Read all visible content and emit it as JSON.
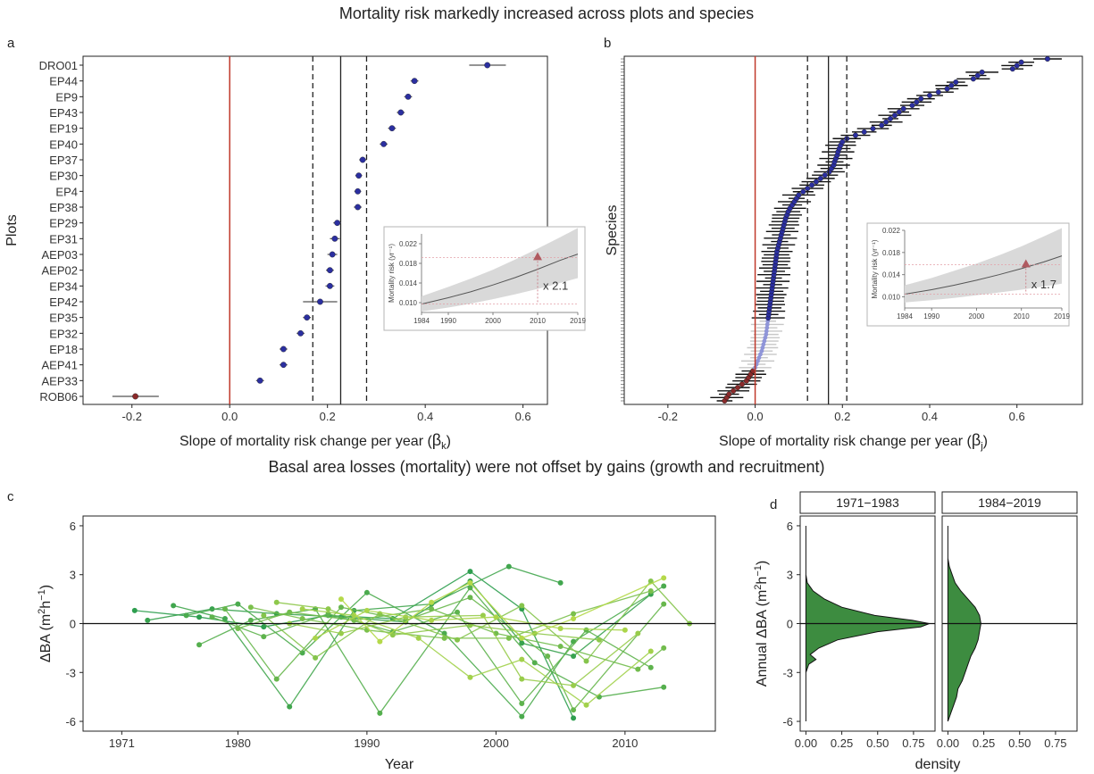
{
  "titles": {
    "top": "Mortality risk markedly increased across plots and species",
    "bottom": "Basal area losses (mortality) were not offset by gains (growth and recruitment)"
  },
  "panel_labels": [
    "a",
    "b",
    "c",
    "d"
  ],
  "colors": {
    "point_blue": "#2b2fa0",
    "point_red": "#8b2a2a",
    "faint_blue": "#8f95d8",
    "zero_line": "#c0392b",
    "green_dark": "#2e9e4f",
    "green_light": "#b5d94a",
    "density_fill": "#3d8c40",
    "inset_band": "#d9d9d9"
  },
  "chart_data": [
    {
      "id": "a",
      "type": "scatter",
      "subtype": "forest-plot",
      "xlabel_main": "Slope of mortality risk change per year (",
      "xlabel_sym": "β",
      "xlabel_sub": "k",
      "xlabel_end": ")",
      "ylabel": "Plots",
      "xlim": [
        -0.3,
        0.65
      ],
      "xticks": [
        -0.2,
        0.0,
        0.2,
        0.4,
        0.6
      ],
      "xtick_labels": [
        "-0.2",
        "0.0",
        "0.2",
        "0.4",
        "0.6"
      ],
      "reference_lines": {
        "zero": 0.0,
        "mean": 0.227,
        "ci": [
          0.17,
          0.28
        ]
      },
      "plots": [
        "DRO01",
        "EP44",
        "EP9",
        "EP43",
        "EP19",
        "EP40",
        "EP37",
        "EP30",
        "EP4",
        "EP38",
        "EP29",
        "EP31",
        "AEP03",
        "AEP02",
        "EP34",
        "EP42",
        "EP35",
        "EP32",
        "EP18",
        "AEP41",
        "AEP33",
        "ROB06"
      ],
      "estimates": [
        0.527,
        0.378,
        0.365,
        0.35,
        0.332,
        0.315,
        0.272,
        0.264,
        0.262,
        0.262,
        0.22,
        0.215,
        0.21,
        0.205,
        0.205,
        0.185,
        0.158,
        0.145,
        0.11,
        0.11,
        0.062,
        -0.193
      ],
      "ci_low": [
        0.49,
        0.37,
        0.357,
        0.342,
        0.324,
        0.307,
        0.265,
        0.257,
        0.255,
        0.254,
        0.212,
        0.205,
        0.2,
        0.197,
        0.196,
        0.15,
        0.15,
        0.137,
        0.102,
        0.102,
        0.054,
        -0.24
      ],
      "ci_high": [
        0.565,
        0.386,
        0.373,
        0.358,
        0.34,
        0.323,
        0.28,
        0.271,
        0.269,
        0.27,
        0.228,
        0.225,
        0.22,
        0.213,
        0.214,
        0.22,
        0.166,
        0.153,
        0.118,
        0.118,
        0.07,
        -0.145
      ],
      "inset": {
        "ylabel": "Mortality risk (yr⁻¹)",
        "ylim": [
          0.008,
          0.024
        ],
        "yticks": [
          0.01,
          0.014,
          0.018,
          0.022
        ],
        "ytick_labels": [
          "0.010",
          "0.014",
          "0.018",
          "0.022"
        ],
        "xlim": [
          1984,
          2019
        ],
        "xticks": [
          1984,
          1990,
          2000,
          2010,
          2019
        ],
        "xtick_labels": [
          "1984",
          "1990",
          "2000",
          "2010",
          "2019"
        ],
        "curve_x": [
          1984,
          1990,
          1995,
          2000,
          2005,
          2010,
          2015,
          2019
        ],
        "curve_y": [
          0.0097,
          0.011,
          0.0122,
          0.0136,
          0.0151,
          0.0168,
          0.0186,
          0.0199
        ],
        "band_low": [
          0.0082,
          0.009,
          0.0098,
          0.0107,
          0.0117,
          0.0128,
          0.014,
          0.015
        ],
        "band_high": [
          0.0113,
          0.0132,
          0.0149,
          0.0167,
          0.0188,
          0.021,
          0.0233,
          0.0252
        ],
        "marker": {
          "x": 2010,
          "y": 0.0192
        },
        "baseline_y": 0.0097,
        "label": "x 2.1"
      }
    },
    {
      "id": "b",
      "type": "scatter",
      "subtype": "forest-plot",
      "xlabel_main": "Slope of mortality risk change per year (",
      "xlabel_sym": "β",
      "xlabel_sub": "j",
      "xlabel_end": ")",
      "ylabel": "Species",
      "xlim": [
        -0.3,
        0.75
      ],
      "xticks": [
        -0.2,
        0.0,
        0.2,
        0.4,
        0.6
      ],
      "xtick_labels": [
        "-0.2",
        "0.0",
        "0.2",
        "0.4",
        "0.6"
      ],
      "reference_lines": {
        "zero": 0.0,
        "mean": 0.168,
        "ci": [
          0.12,
          0.21
        ]
      },
      "species_estimates": [
        -0.07,
        -0.065,
        -0.06,
        -0.05,
        -0.04,
        -0.03,
        -0.02,
        -0.015,
        -0.01,
        -0.005,
        0.0,
        0.003,
        0.006,
        0.009,
        0.012,
        0.015,
        0.017,
        0.019,
        0.021,
        0.023,
        0.025,
        0.026,
        0.027,
        0.028,
        0.029,
        0.03,
        0.031,
        0.032,
        0.033,
        0.034,
        0.035,
        0.036,
        0.037,
        0.038,
        0.039,
        0.04,
        0.041,
        0.042,
        0.043,
        0.044,
        0.045,
        0.046,
        0.047,
        0.048,
        0.049,
        0.05,
        0.052,
        0.054,
        0.056,
        0.058,
        0.06,
        0.062,
        0.064,
        0.066,
        0.068,
        0.07,
        0.073,
        0.076,
        0.08,
        0.085,
        0.09,
        0.095,
        0.1,
        0.11,
        0.12,
        0.13,
        0.14,
        0.15,
        0.16,
        0.17,
        0.175,
        0.18,
        0.182,
        0.185,
        0.188,
        0.19,
        0.193,
        0.196,
        0.2,
        0.21,
        0.23,
        0.25,
        0.27,
        0.29,
        0.3,
        0.31,
        0.32,
        0.33,
        0.34,
        0.36,
        0.37,
        0.38,
        0.4,
        0.42,
        0.44,
        0.45,
        0.46,
        0.5,
        0.51,
        0.52,
        0.59,
        0.6,
        0.61,
        0.67
      ],
      "inset": {
        "ylabel": "Mortality risk (yr⁻¹)",
        "ylim": [
          0.008,
          0.022
        ],
        "yticks": [
          0.01,
          0.014,
          0.018,
          0.022
        ],
        "ytick_labels": [
          "0.010",
          "0.014",
          "0.018",
          "0.022"
        ],
        "xlim": [
          1984,
          2019
        ],
        "xticks": [
          1984,
          1990,
          2000,
          2010,
          2019
        ],
        "xtick_labels": [
          "1984",
          "1990",
          "2000",
          "2010",
          "2019"
        ],
        "curve_x": [
          1984,
          1990,
          1995,
          2000,
          2005,
          2010,
          2015,
          2019
        ],
        "curve_y": [
          0.0105,
          0.0113,
          0.0121,
          0.013,
          0.014,
          0.0151,
          0.0163,
          0.0174
        ],
        "band_low": [
          0.009,
          0.0094,
          0.0098,
          0.0103,
          0.0108,
          0.0113,
          0.0119,
          0.0124
        ],
        "band_high": [
          0.0121,
          0.0134,
          0.0147,
          0.016,
          0.0175,
          0.0191,
          0.0209,
          0.0224
        ],
        "marker": {
          "x": 2011,
          "y": 0.0158
        },
        "baseline_y": 0.0105,
        "label": "x 1.7"
      }
    },
    {
      "id": "c",
      "type": "line",
      "xlabel": "Year",
      "ylabel_pre": "ΔBA (m",
      "ylabel_sup1": "2",
      "ylabel_mid": "h",
      "ylabel_sup2": "−1",
      "ylabel_end": ")",
      "xlim": [
        1968,
        2017
      ],
      "ylim": [
        -6.6,
        6.6
      ],
      "xticks": [
        1971,
        1980,
        1990,
        2000,
        2010
      ],
      "xtick_labels": [
        "1971",
        "1980",
        "1990",
        "2000",
        "2010"
      ],
      "yticks": [
        -6,
        -3,
        0,
        3,
        6
      ],
      "ytick_labels": [
        "-6",
        "-3",
        "0",
        "3",
        "6"
      ],
      "series": [
        {
          "x": [
            1972,
            1977,
            1982,
            1987,
            1992,
            1998,
            2002,
            2006
          ],
          "y": [
            0.8,
            0.4,
            -0.2,
            0.5,
            0.3,
            3.2,
            0.9,
            -5.8
          ]
        },
        {
          "x": [
            1973,
            1978,
            1983,
            1988,
            1993,
            1998,
            2002,
            2006,
            2012
          ],
          "y": [
            0.2,
            0.9,
            0.6,
            0.4,
            0.1,
            2.6,
            -1.2,
            -2.0,
            1.8
          ]
        },
        {
          "x": [
            1975,
            1979,
            1984,
            1989,
            1995,
            2001,
            2005
          ],
          "y": [
            1.1,
            0.3,
            -5.1,
            0.8,
            1.2,
            3.5,
            2.5
          ]
        },
        {
          "x": [
            1976,
            1980,
            1985,
            1990,
            1996,
            2002,
            2006,
            2013
          ],
          "y": [
            0.5,
            1.2,
            -1.8,
            1.9,
            -0.6,
            -5.7,
            -1.1,
            2.3
          ]
        },
        {
          "x": [
            1977,
            1981,
            1986,
            1991,
            1998,
            2003,
            2008,
            2013
          ],
          "y": [
            -1.3,
            0.2,
            0.9,
            -5.5,
            2.2,
            -2.4,
            -4.5,
            -3.9
          ]
        },
        {
          "x": [
            1978,
            1982,
            1987,
            1992,
            1997,
            2002,
            2007,
            2012
          ],
          "y": [
            0.4,
            -0.8,
            0.6,
            -0.5,
            0.7,
            -4.9,
            -0.4,
            -2.7
          ]
        },
        {
          "x": [
            1979,
            1983,
            1988,
            1993,
            1998,
            2004,
            2006,
            2013
          ],
          "y": [
            0.9,
            -3.4,
            1.0,
            0.2,
            1.6,
            -2.0,
            -5.3,
            1.2
          ]
        },
        {
          "x": [
            1980,
            1984,
            1989,
            1995,
            2000,
            2005,
            2011,
            2013
          ],
          "y": [
            -0.3,
            0.7,
            0.2,
            0.9,
            -0.6,
            -1.4,
            -2.8,
            -1.5
          ]
        },
        {
          "x": [
            1981,
            1985,
            1990,
            1996,
            2001,
            2006,
            2012
          ],
          "y": [
            1.0,
            0.3,
            -0.4,
            -0.9,
            -0.9,
            0.6,
            2.0
          ]
        },
        {
          "x": [
            1982,
            1986,
            1991,
            1997,
            2002,
            2007,
            2012,
            2015
          ],
          "y": [
            0.5,
            -2.1,
            0.6,
            -1.0,
            1.1,
            -2.3,
            2.6,
            0.0
          ]
        },
        {
          "x": [
            1983,
            1987,
            1992,
            1998,
            2003,
            2008
          ],
          "y": [
            1.3,
            0.9,
            -0.7,
            -0.1,
            -0.6,
            -1.0
          ]
        },
        {
          "x": [
            1984,
            1988,
            1993,
            1999,
            2002,
            2006,
            2011
          ],
          "y": [
            0.0,
            -0.6,
            0.4,
            0.5,
            -3.4,
            -3.8,
            -0.6
          ]
        },
        {
          "x": [
            1985,
            1989,
            1994,
            1998,
            2002,
            2007,
            2012
          ],
          "y": [
            0.9,
            0.5,
            -0.9,
            -3.3,
            -2.2,
            -5.0,
            -1.7
          ]
        },
        {
          "x": [
            1986,
            1990,
            1995,
            2000,
            2005,
            2010
          ],
          "y": [
            -0.9,
            0.8,
            0.2,
            0.4,
            -0.3,
            -0.4
          ]
        },
        {
          "x": [
            1988,
            1991,
            1995,
            1998,
            2002,
            2006,
            2013
          ],
          "y": [
            1.5,
            -1.1,
            1.3,
            2.5,
            -0.9,
            0.3,
            2.8
          ]
        }
      ],
      "zero_line": 0
    },
    {
      "id": "d",
      "type": "area",
      "subtype": "density",
      "ylabel_pre": "Annual  ΔBA (m",
      "ylabel_sup1": "2",
      "ylabel_mid": "h",
      "ylabel_sup2": "−1",
      "ylabel_end": ")",
      "xlabel": "density",
      "ylim": [
        -6.6,
        6.6
      ],
      "yticks": [
        -6,
        -3,
        0,
        3,
        6
      ],
      "ytick_labels": [
        "-6",
        "-3",
        "0",
        "3",
        "6"
      ],
      "xlim": [
        -0.04,
        0.9
      ],
      "xticks": [
        0.0,
        0.25,
        0.5,
        0.75
      ],
      "xtick_labels": [
        "0.00",
        "0.25",
        "0.50",
        "0.75"
      ],
      "facets": [
        {
          "label": "1971−1983",
          "y": [
            -6.0,
            -3.0,
            -2.5,
            -2.2,
            -1.9,
            -1.5,
            -1.0,
            -0.5,
            -0.2,
            0.0,
            0.2,
            0.5,
            1.0,
            1.5,
            2.0,
            2.5,
            3.0,
            6.0
          ],
          "density": [
            0.0,
            0.0,
            0.02,
            0.07,
            0.03,
            0.09,
            0.22,
            0.5,
            0.8,
            0.86,
            0.74,
            0.48,
            0.25,
            0.13,
            0.05,
            0.01,
            0.0,
            0.0
          ]
        },
        {
          "label": "1984−2019",
          "y": [
            -6.0,
            -5.5,
            -5.0,
            -4.5,
            -4.0,
            -3.5,
            -3.0,
            -2.5,
            -2.0,
            -1.5,
            -1.0,
            -0.5,
            0.0,
            0.5,
            1.0,
            1.5,
            2.0,
            2.5,
            3.0,
            3.5,
            4.0,
            6.0
          ],
          "density": [
            0.0,
            0.02,
            0.04,
            0.06,
            0.07,
            0.1,
            0.12,
            0.14,
            0.16,
            0.19,
            0.21,
            0.22,
            0.23,
            0.22,
            0.19,
            0.14,
            0.09,
            0.05,
            0.03,
            0.01,
            0.0,
            0.0
          ]
        }
      ],
      "zero_line": 0
    }
  ]
}
